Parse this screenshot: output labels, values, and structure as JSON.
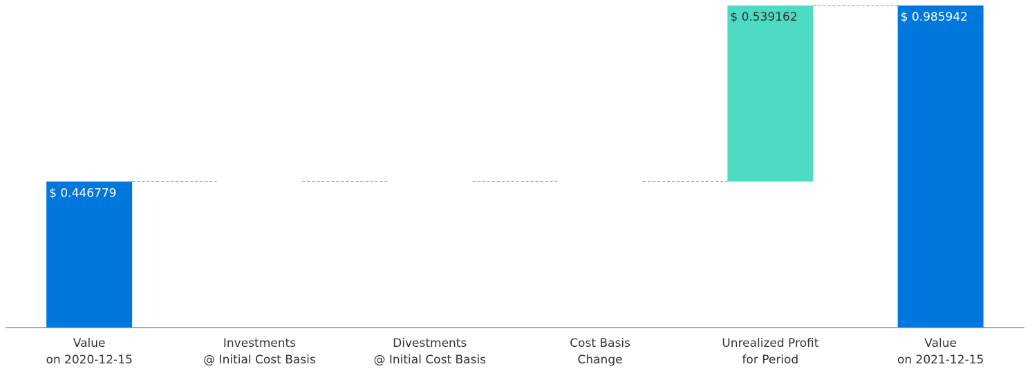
{
  "chart_data": {
    "type": "waterfall",
    "categories": [
      [
        "Value",
        "on 2020-12-15"
      ],
      [
        "Investments",
        "@ Initial Cost Basis"
      ],
      [
        "Divestments",
        "@ Initial Cost Basis"
      ],
      [
        "Cost Basis",
        "Change"
      ],
      [
        "Unrealized Profit",
        "for Period"
      ],
      [
        "Value",
        "on 2021-12-15"
      ]
    ],
    "values": [
      0.446779,
      0,
      0,
      0,
      0.539162,
      0.985942
    ],
    "value_labels": [
      "$ 0.446779",
      null,
      null,
      null,
      "$ 0.539162",
      "$ 0.985942"
    ],
    "totals": [
      true,
      false,
      false,
      false,
      false,
      true
    ],
    "colors": [
      "#0077dd",
      "#4ddbc4",
      "#4ddbc4",
      "#4ddbc4",
      "#4ddbc4",
      "#0077dd"
    ],
    "ylim": [
      0,
      1
    ]
  }
}
